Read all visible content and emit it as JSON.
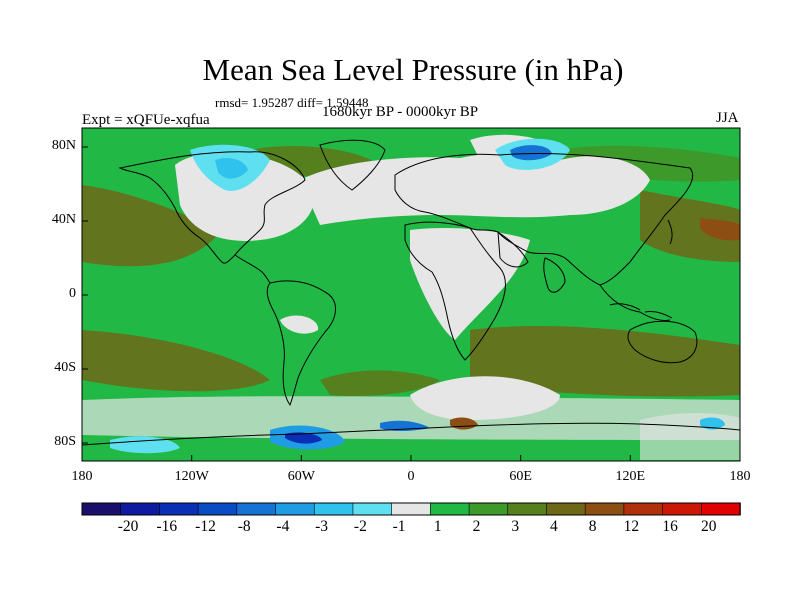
{
  "title": "Mean Sea Level Pressure (in hPa)",
  "stats": "rmsd= 1.95287 diff= 1.59448",
  "experiment": "Expt = xQFUe-xqfua",
  "period": "1680kyr BP - 0000kyr BP",
  "season": "JJA",
  "lat_labels": [
    "80N",
    "40N",
    "0",
    "40S",
    "80S"
  ],
  "lon_labels": [
    "180",
    "120W",
    "60W",
    "0",
    "60E",
    "120E",
    "180"
  ],
  "colorbar": {
    "labels": [
      "-20",
      "-16",
      "-12",
      "-8",
      "-4",
      "-3",
      "-2",
      "-1",
      "1",
      "2",
      "3",
      "4",
      "8",
      "12",
      "16",
      "20"
    ],
    "colors": [
      "#1a0f6b",
      "#0e1aa0",
      "#0a2fb5",
      "#0a4cc4",
      "#1673d6",
      "#1f9ce3",
      "#2ec2ec",
      "#5fe0f0",
      "#e6e6e6",
      "#22b846",
      "#3d9a2a",
      "#56801e",
      "#6e6717",
      "#8c4e12",
      "#b0300c",
      "#cc1606",
      "#e00000"
    ]
  },
  "legend": {
    "land_outline_color": "#000000",
    "background_field_color": "#22b846"
  }
}
